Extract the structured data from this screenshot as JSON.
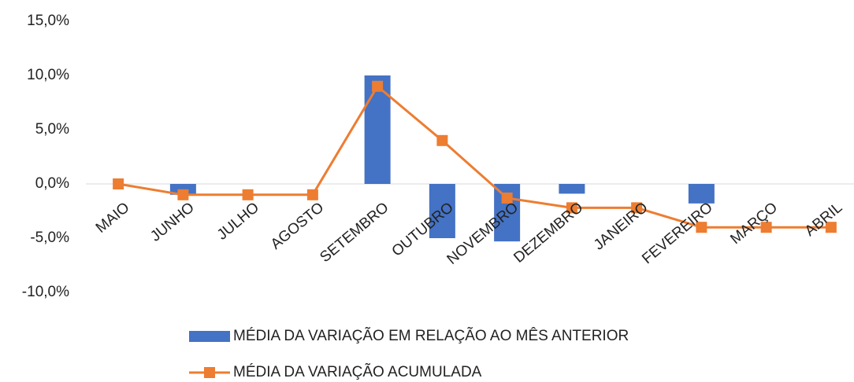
{
  "chart_data": {
    "type": "bar-line",
    "categories": [
      "MAIO",
      "JUNHO",
      "JULHO",
      "AGOSTO",
      "SETEMBRO",
      "OUTUBRO",
      "NOVEMBRO",
      "DEZEMBRO",
      "JANEIRO",
      "FEVEREIRO",
      "MARÇO",
      "ABRIL"
    ],
    "series": [
      {
        "name": "MÉDIA DA VARIAÇÃO EM RELAÇÃO AO MÊS ANTERIOR",
        "type": "bar",
        "color": "#4472c4",
        "values": [
          0,
          -1.0,
          0,
          0,
          10.0,
          -5.0,
          -5.3,
          -0.9,
          0,
          -1.8,
          0,
          0
        ]
      },
      {
        "name": "MÉDIA DA VARIAÇÃO ACUMULADA",
        "type": "line",
        "color": "#ed7d31",
        "values": [
          0,
          -1.0,
          -1.0,
          -1.0,
          9.0,
          4.0,
          -1.3,
          -2.2,
          -2.2,
          -4.0,
          -4.0,
          -4.0
        ]
      }
    ],
    "ylim": [
      -10,
      15
    ],
    "yticks": [
      {
        "value": -10,
        "label": "-10,0%"
      },
      {
        "value": -5,
        "label": "-5,0%"
      },
      {
        "value": 0,
        "label": "0,0%"
      },
      {
        "value": 5,
        "label": "5,0%"
      },
      {
        "value": 10,
        "label": "10,0%"
      },
      {
        "value": 15,
        "label": "15,0%"
      }
    ],
    "legend": "bottom"
  }
}
